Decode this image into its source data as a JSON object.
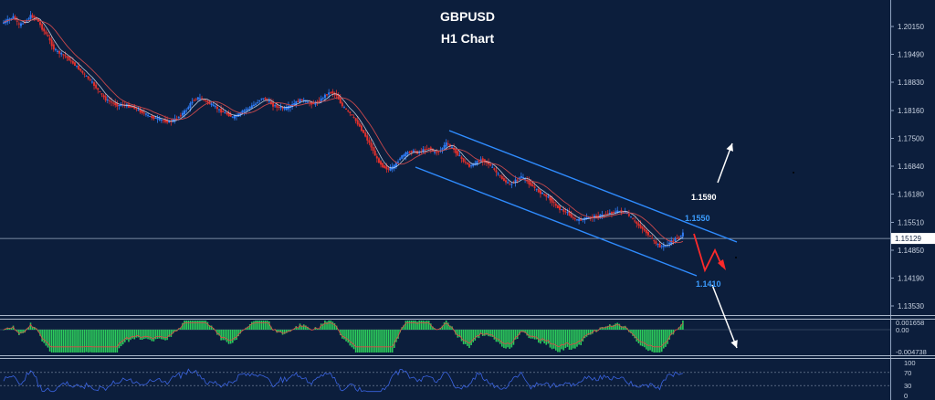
{
  "chart_data": {
    "type": "candlestick",
    "title": "GBPUSD",
    "subtitle": "H1 Chart",
    "price_axis": {
      "ticks": [
        "1.20150",
        "1.19490",
        "1.18830",
        "1.18160",
        "1.17500",
        "1.16840",
        "1.16180",
        "1.15510",
        "1.14850",
        "1.14190",
        "1.13530"
      ],
      "current_price": "1.15129"
    },
    "price_path": [
      1.2022,
      1.203,
      1.2038,
      1.2018,
      1.2026,
      1.204,
      1.2034,
      1.201,
      1.199,
      1.1962,
      1.1952,
      1.1945,
      1.1932,
      1.192,
      1.1905,
      1.1892,
      1.1876,
      1.1858,
      1.1842,
      1.1835,
      1.1828,
      1.183,
      1.1826,
      1.1822,
      1.1814,
      1.1806,
      1.18,
      1.1796,
      1.1792,
      1.1789,
      1.1795,
      1.1805,
      1.1818,
      1.1838,
      1.1846,
      1.1842,
      1.1832,
      1.1824,
      1.1814,
      1.1808,
      1.18,
      1.1806,
      1.1816,
      1.1824,
      1.1832,
      1.1846,
      1.184,
      1.1828,
      1.1824,
      1.182,
      1.1826,
      1.1836,
      1.1842,
      1.1834,
      1.1832,
      1.1838,
      1.1852,
      1.186,
      1.1852,
      1.1826,
      1.1814,
      1.1798,
      1.1778,
      1.1755,
      1.173,
      1.17,
      1.1684,
      1.1676,
      1.1684,
      1.1704,
      1.1714,
      1.172,
      1.1716,
      1.1722,
      1.1728,
      1.1716,
      1.1722,
      1.1738,
      1.1728,
      1.1712,
      1.1696,
      1.1684,
      1.169,
      1.17,
      1.1694,
      1.168,
      1.1664,
      1.165,
      1.164,
      1.165,
      1.166,
      1.1648,
      1.1636,
      1.1624,
      1.1616,
      1.1606,
      1.159,
      1.158,
      1.1574,
      1.156,
      1.1556,
      1.156,
      1.1563,
      1.1565,
      1.1568,
      1.1572,
      1.1575,
      1.1578,
      1.1575,
      1.1562,
      1.1548,
      1.1536,
      1.1522,
      1.1505,
      1.1494,
      1.1496,
      1.1506,
      1.1514,
      1.1524
    ],
    "annotations": [
      {
        "label": "1.1590",
        "color": "#ffffff"
      },
      {
        "label": "1.1550",
        "color": "#3b9cff"
      },
      {
        "label": "1.1410",
        "color": "#3b9cff"
      }
    ],
    "channel": {
      "color": "#2f8cff"
    },
    "colors": {
      "bull": "#2f7cf6",
      "bear": "#e0302c",
      "ma_fast": "#d8e6f5",
      "ma_slow": "#c8484c",
      "forecast": "#ff2a2a"
    },
    "macd_axis": {
      "ticks": [
        "0.001658",
        "0.00",
        "-0.004738"
      ],
      "colors": {
        "histogram": "#2ccc5c",
        "signal": "#e04848"
      }
    },
    "rsi_axis": {
      "ticks": [
        "100",
        "70",
        "30",
        "0"
      ],
      "line_color": "#3a63e0"
    },
    "grid": false
  }
}
